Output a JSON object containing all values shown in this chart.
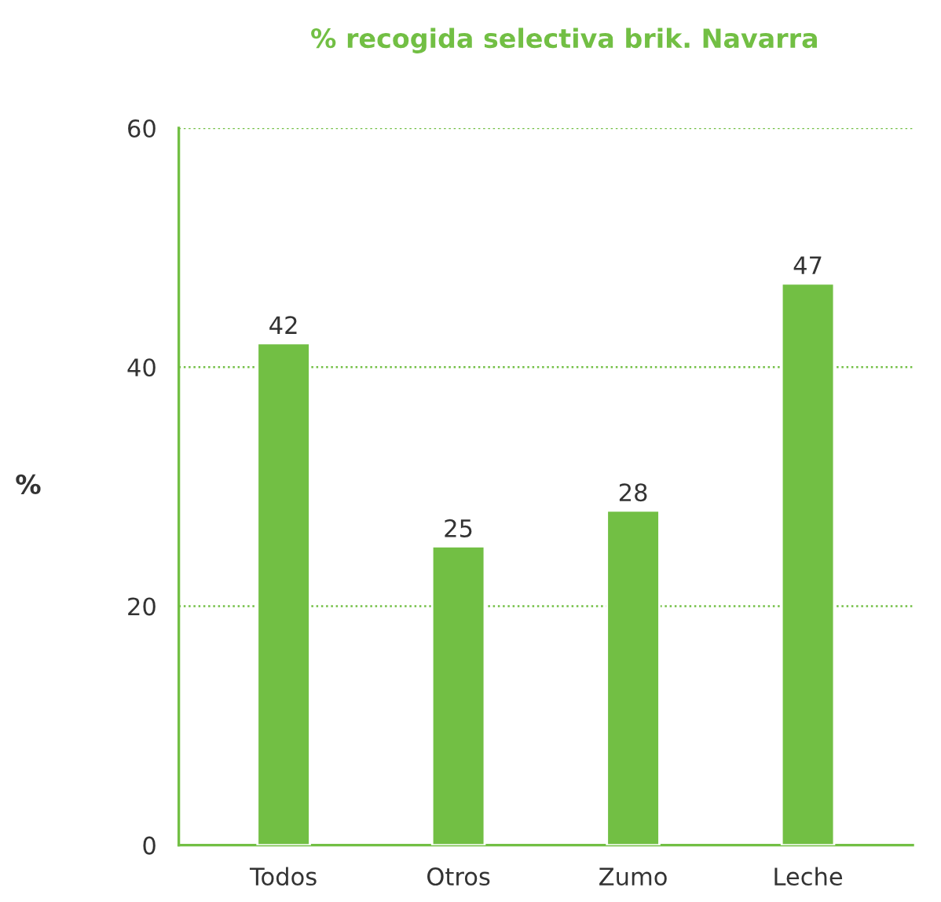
{
  "chart_data": {
    "type": "bar",
    "title": "% recogida selectiva brik. Navarra",
    "ylabel": "%",
    "categories": [
      "Todos",
      "Otros",
      "Zumo",
      "Leche"
    ],
    "values": [
      42,
      25,
      28,
      47
    ],
    "data_labels": true,
    "color": "#72bf44",
    "ylim": [
      0,
      60
    ],
    "yticks": [
      0,
      20,
      40,
      60
    ],
    "grid": "y"
  }
}
